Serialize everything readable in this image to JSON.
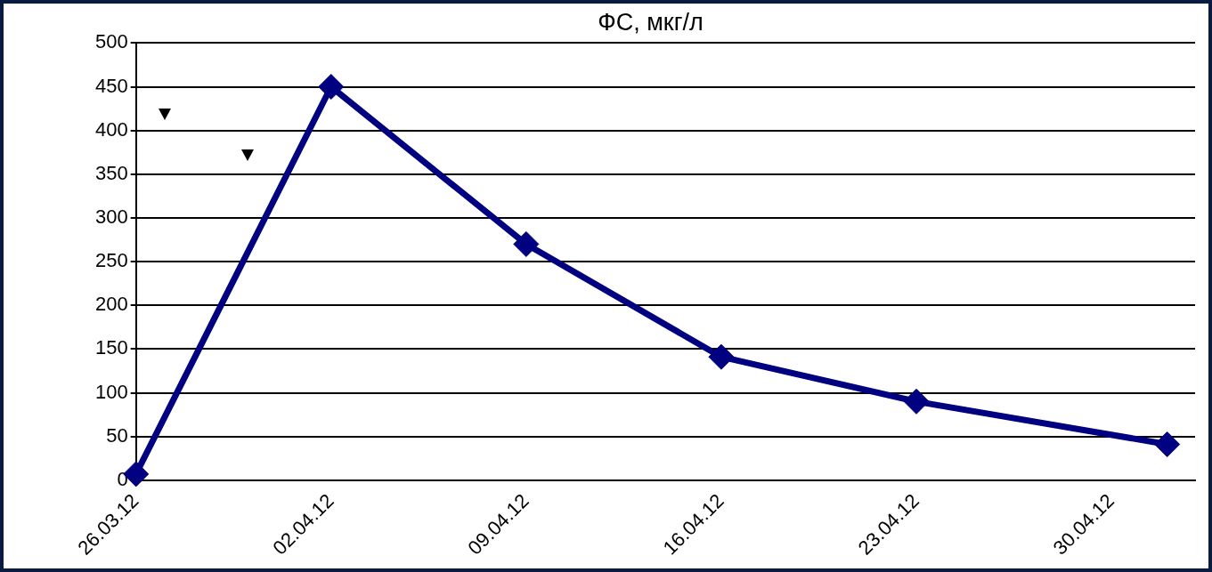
{
  "chart_data": {
    "type": "line",
    "title": "ФС, мкг/л",
    "x": [
      "--03-26",
      "--04-02",
      "--04-09",
      "--04-16",
      "--04-23",
      "--05-02"
    ],
    "series": [
      {
        "color": "#000080",
        "values": [
          7,
          450,
          270,
          141,
          90,
          41
        ]
      }
    ],
    "marker": "diamond",
    "line_style": "solid",
    "xlim": [
      "--03-26",
      "--05-03"
    ],
    "xticks": [
      {
        "value": "--03-26",
        "label": "26.03.12"
      },
      {
        "value": "--04-02",
        "label": "02.04.12"
      },
      {
        "value": "--04-09",
        "label": "09.04.12"
      },
      {
        "value": "--04-16",
        "label": "16.04.12"
      },
      {
        "value": "--04-23",
        "label": "23.04.12"
      },
      {
        "value": "--04-30",
        "label": "30.04.12"
      }
    ],
    "ylim": [
      0,
      500
    ],
    "yticks": [
      0,
      50,
      100,
      150,
      200,
      250,
      300,
      350,
      400,
      450,
      500
    ],
    "grid": "y",
    "legend": false
  }
}
